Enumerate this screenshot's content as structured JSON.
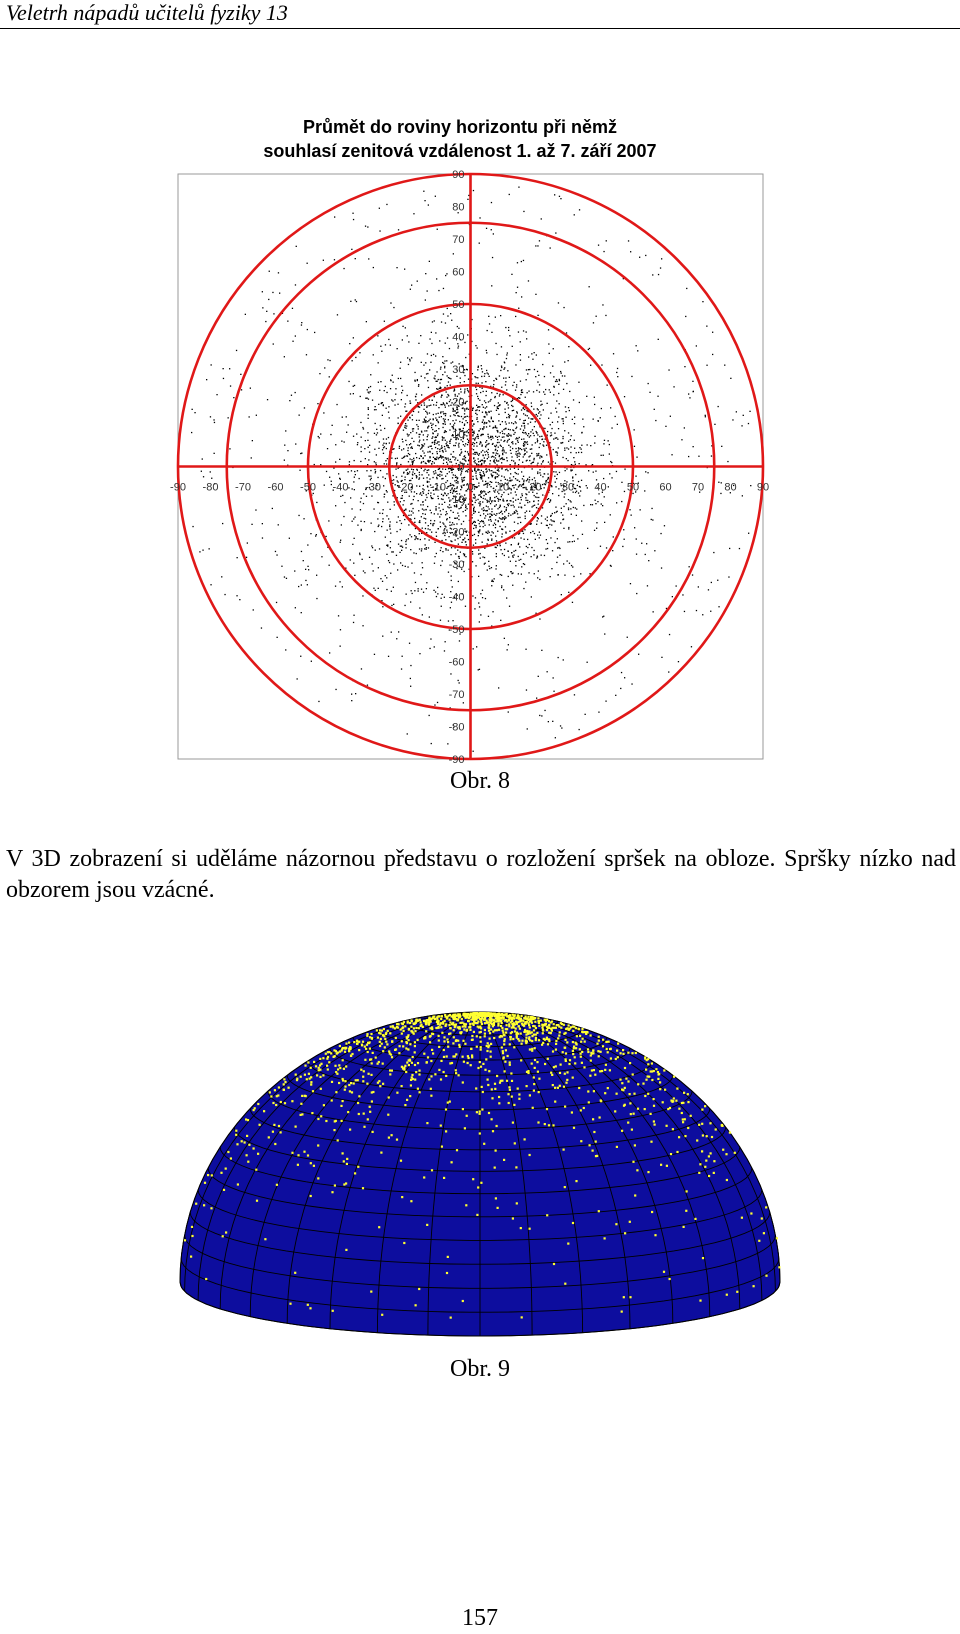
{
  "header": {
    "title": "Veletrh nápadů učitelů fyziky 13"
  },
  "figure8": {
    "caption": "Obr. 8",
    "chart_data": {
      "type": "scatter",
      "title": "Průmět do roviny horizontu při němž",
      "subtitle": "souhlasí zenitová vzdálenost 1. až 7. září 2007",
      "xlim": [
        -90,
        90
      ],
      "ylim": [
        -90,
        90
      ],
      "x_ticks": [
        "-90",
        "-80",
        "-70",
        "-60",
        "-50",
        "-40",
        "-30",
        "-20",
        "-10",
        "0",
        "10",
        "20",
        "30",
        "40",
        "50",
        "60",
        "70",
        "80",
        "90"
      ],
      "y_ticks": [
        "90",
        "80",
        "70",
        "60",
        "50",
        "40",
        "30",
        "20",
        "10",
        "0",
        "-10",
        "-20",
        "-30",
        "-40",
        "-50",
        "-60",
        "-70",
        "-80",
        "-90"
      ],
      "circles": [
        25,
        50,
        75,
        90
      ],
      "series": [
        {
          "color": "#000000",
          "distribution": "concentrated near origin, density decreasing with radius"
        }
      ],
      "colors": {
        "circles": "#e01818",
        "axes": "#e01818",
        "points": "#000000"
      }
    }
  },
  "paragraph": "V 3D zobrazení si uděláme názornou představu o rozložení spršek na obloze. Spršky nízko nad obzorem jsou vzácné.",
  "figure9": {
    "caption": "Obr. 9",
    "colors": {
      "dome": "#0d0d9e",
      "grid": "#000000",
      "points": "#ffff33"
    }
  },
  "page_number": "157"
}
